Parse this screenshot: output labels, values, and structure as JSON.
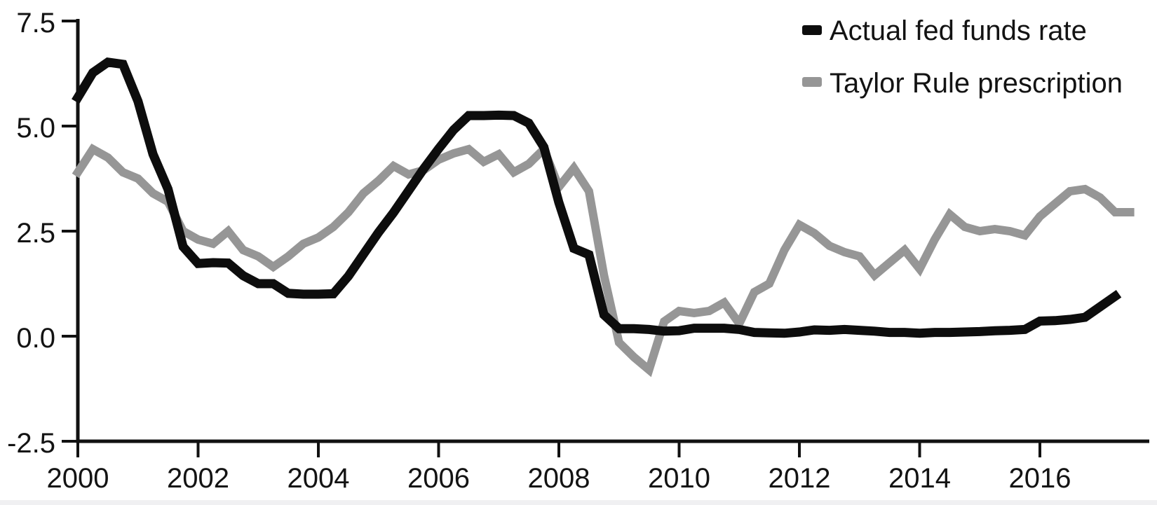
{
  "chart_data": {
    "type": "line",
    "title": "",
    "frequency": "quarterly",
    "x_start": 2000,
    "x_step_years": 0.25,
    "x_range": [
      2000,
      2017.83
    ],
    "ylim": [
      -2.5,
      7.5
    ],
    "grid": false,
    "legend_position": "top-right",
    "axis_color": "#111111",
    "background_color": "#ffffff",
    "x_axis": {
      "tick_years": [
        2000,
        2002,
        2004,
        2006,
        2008,
        2010,
        2012,
        2014,
        2016
      ],
      "tick_labels": [
        "2000",
        "2002",
        "2004",
        "2006",
        "2008",
        "2010",
        "2012",
        "2014",
        "2016"
      ]
    },
    "y_axis": {
      "tick_values": [
        7.5,
        5.0,
        2.5,
        0.0,
        -2.5
      ],
      "tick_labels": [
        "7.5",
        "5.0",
        "2.5",
        "0.0",
        "-2.5"
      ]
    },
    "series": [
      {
        "name": "Actual fed funds rate",
        "color": "#0d0d0d",
        "stroke_width": 13,
        "values": [
          5.68,
          6.27,
          6.52,
          6.47,
          5.59,
          4.33,
          3.5,
          2.13,
          1.73,
          1.75,
          1.74,
          1.44,
          1.25,
          1.25,
          1.02,
          1.0,
          1.0,
          1.01,
          1.43,
          1.95,
          2.47,
          2.94,
          3.46,
          3.98,
          4.46,
          4.91,
          5.25,
          5.25,
          5.26,
          5.25,
          5.07,
          4.5,
          3.18,
          2.09,
          1.94,
          0.51,
          0.18,
          0.18,
          0.16,
          0.12,
          0.13,
          0.19,
          0.19,
          0.19,
          0.16,
          0.09,
          0.08,
          0.07,
          0.1,
          0.15,
          0.14,
          0.16,
          0.14,
          0.12,
          0.09,
          0.09,
          0.07,
          0.09,
          0.09,
          0.1,
          0.11,
          0.13,
          0.14,
          0.16,
          0.36,
          0.37,
          0.4,
          0.45,
          0.7,
          0.95,
          null
        ]
      },
      {
        "name": "Taylor Rule prescription",
        "color": "#969696",
        "stroke_width": 12,
        "values": [
          3.9,
          4.45,
          4.25,
          3.9,
          3.75,
          3.4,
          3.2,
          2.5,
          2.3,
          2.2,
          2.5,
          2.05,
          1.9,
          1.65,
          1.9,
          2.2,
          2.35,
          2.6,
          2.95,
          3.4,
          3.7,
          4.05,
          3.85,
          3.95,
          4.2,
          4.35,
          4.45,
          4.15,
          4.33,
          3.9,
          4.1,
          4.45,
          3.55,
          4.0,
          3.45,
          1.45,
          -0.15,
          -0.5,
          -0.8,
          0.35,
          0.6,
          0.55,
          0.6,
          0.8,
          0.3,
          1.05,
          1.25,
          2.05,
          2.65,
          2.45,
          2.15,
          2.0,
          1.9,
          1.45,
          1.75,
          2.05,
          1.6,
          2.3,
          2.9,
          2.6,
          2.5,
          2.55,
          2.5,
          2.4,
          2.85,
          3.15,
          3.45,
          3.5,
          3.3,
          2.95,
          2.95
        ]
      }
    ],
    "legend": {
      "items": [
        {
          "label": "Actual fed funds rate",
          "color": "#0d0d0d"
        },
        {
          "label": "Taylor Rule prescription",
          "color": "#969696"
        }
      ]
    }
  }
}
